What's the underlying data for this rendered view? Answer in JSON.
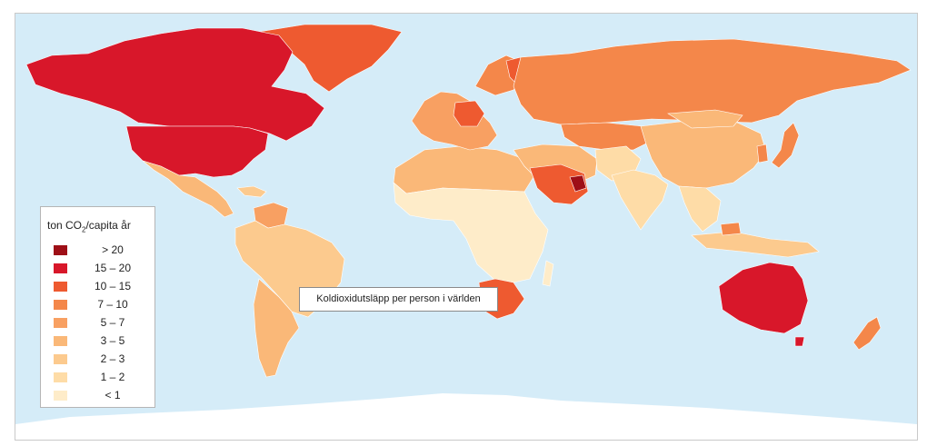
{
  "map": {
    "colors": {
      "ocean": "#d5ecf8",
      "ice": "#ffffff",
      "border": "#ffffff"
    }
  },
  "legend": {
    "title_prefix": "ton CO",
    "title_sub": "2",
    "title_suffix": "/capita år",
    "items": [
      {
        "label": "> 20",
        "color": "#9e0f17"
      },
      {
        "label": "15 – 20",
        "color": "#d8172a"
      },
      {
        "label": "10 – 15",
        "color": "#ee5a30"
      },
      {
        "label": "7 – 10",
        "color": "#f4874a"
      },
      {
        "label": "5 – 7",
        "color": "#f8a062"
      },
      {
        "label": "3 – 5",
        "color": "#fab878"
      },
      {
        "label": "2 – 3",
        "color": "#fcca8e"
      },
      {
        "label": "1 – 2",
        "color": "#fedca7"
      },
      {
        "label": "< 1",
        "color": "#feecc9"
      }
    ]
  },
  "caption": "Koldioxidutsläpp per person i världen"
}
